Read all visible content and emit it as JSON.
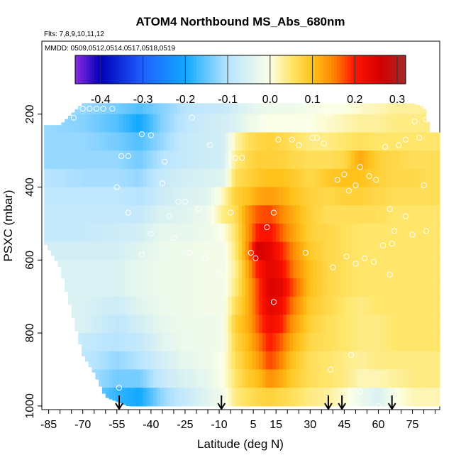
{
  "chart_data": {
    "type": "heatmap",
    "title": "ATOM4 Northbound MS_Abs_680nm",
    "flights_note": "Flts: 7,8,9,10,11,12",
    "dates_note": "MMDD: 0509,0512,0514,0517,0518,0519",
    "xlabel": "Latitude (deg N)",
    "ylabel": "PSXC (mbar)",
    "xlim": [
      -88,
      87
    ],
    "ylim": [
      1010,
      0
    ],
    "x_ticks": [
      "-85",
      "-70",
      "-55",
      "-40",
      "-25",
      "-10",
      "5",
      "15",
      "30",
      "45",
      "60",
      "75"
    ],
    "x_tick_values": [
      -85,
      -70,
      -55,
      -40,
      -25,
      -10,
      5,
      15,
      30,
      45,
      60,
      75
    ],
    "y_ticks": [
      "200",
      "400",
      "600",
      "800",
      "1000"
    ],
    "y_tick_values": [
      200,
      400,
      600,
      800,
      1000
    ],
    "colorbar": {
      "range": [
        -0.46,
        0.32
      ],
      "tick_labels": [
        "-0.4",
        "-0.3",
        "-0.2",
        "-0.1",
        "0.0",
        "0.1",
        "0.2",
        "0.3"
      ],
      "tick_values": [
        -0.4,
        -0.3,
        -0.2,
        -0.1,
        0.0,
        0.1,
        0.2,
        0.3
      ],
      "stops": [
        {
          "v": -0.46,
          "c": "#8a2be2"
        },
        {
          "v": -0.4,
          "c": "#0000b8"
        },
        {
          "v": -0.3,
          "c": "#2060ff"
        },
        {
          "v": -0.2,
          "c": "#10a8ff"
        },
        {
          "v": -0.1,
          "c": "#b8e4ff"
        },
        {
          "v": 0.0,
          "c": "#fbffe6"
        },
        {
          "v": 0.05,
          "c": "#ffe66a"
        },
        {
          "v": 0.1,
          "c": "#ffc21a"
        },
        {
          "v": 0.15,
          "c": "#ff8400"
        },
        {
          "v": 0.2,
          "c": "#ff1500"
        },
        {
          "v": 0.26,
          "c": "#d40000"
        },
        {
          "v": 0.32,
          "c": "#a52a2a"
        }
      ]
    },
    "pressure_levels": [
      175,
      225,
      275,
      325,
      375,
      425,
      475,
      525,
      575,
      625,
      675,
      725,
      775,
      825,
      875,
      925,
      975
    ],
    "profile_anchors": [
      {
        "lat": -85,
        "vals": [
          -0.12,
          -0.12,
          -0.12,
          -0.12,
          -0.1,
          -0.09,
          -0.08,
          -0.08,
          -0.06,
          -0.05,
          -0.05,
          -0.04,
          -0.04,
          -0.04,
          -0.06,
          -0.08,
          -0.1
        ]
      },
      {
        "lat": -70,
        "vals": [
          -0.12,
          -0.13,
          -0.12,
          -0.12,
          -0.11,
          -0.09,
          -0.08,
          -0.08,
          -0.06,
          -0.05,
          -0.05,
          -0.05,
          -0.05,
          -0.08,
          -0.09,
          -0.1,
          -0.12
        ]
      },
      {
        "lat": -55,
        "vals": [
          -0.14,
          -0.16,
          -0.14,
          -0.12,
          -0.11,
          -0.09,
          -0.08,
          -0.07,
          -0.06,
          -0.05,
          -0.05,
          -0.07,
          -0.09,
          -0.1,
          -0.12,
          -0.14,
          -0.18
        ]
      },
      {
        "lat": -45,
        "vals": [
          -0.16,
          -0.2,
          -0.16,
          -0.14,
          -0.12,
          -0.1,
          -0.08,
          -0.06,
          -0.04,
          -0.03,
          -0.03,
          -0.04,
          -0.06,
          -0.08,
          -0.1,
          -0.14,
          -0.2
        ]
      },
      {
        "lat": -35,
        "vals": [
          -0.13,
          -0.13,
          -0.12,
          -0.1,
          -0.08,
          -0.07,
          -0.05,
          -0.03,
          -0.02,
          -0.02,
          -0.02,
          -0.02,
          -0.03,
          -0.04,
          -0.06,
          -0.08,
          -0.12
        ]
      },
      {
        "lat": -25,
        "vals": [
          -0.1,
          -0.09,
          -0.08,
          -0.08,
          -0.06,
          -0.05,
          -0.04,
          -0.03,
          -0.02,
          -0.02,
          -0.02,
          -0.02,
          -0.02,
          -0.02,
          -0.03,
          -0.05,
          -0.08
        ]
      },
      {
        "lat": -15,
        "vals": [
          -0.08,
          -0.07,
          -0.07,
          -0.07,
          -0.05,
          -0.04,
          -0.02,
          -0.02,
          -0.01,
          -0.01,
          -0.01,
          -0.01,
          -0.02,
          -0.02,
          -0.02,
          -0.03,
          -0.04
        ]
      },
      {
        "lat": -8,
        "vals": [
          -0.08,
          -0.06,
          -0.06,
          -0.06,
          -0.04,
          0.02,
          0.04,
          0.0,
          -0.01,
          -0.01,
          -0.01,
          -0.01,
          -0.01,
          -0.01,
          0.0,
          0.0,
          -0.01
        ]
      },
      {
        "lat": -3,
        "vals": [
          -0.06,
          -0.05,
          0.02,
          0.04,
          0.06,
          0.08,
          0.06,
          0.05,
          0.04,
          0.03,
          0.04,
          0.06,
          0.08,
          0.07,
          0.06,
          0.05,
          0.04
        ]
      },
      {
        "lat": 3,
        "vals": [
          -0.04,
          -0.02,
          0.06,
          0.07,
          0.08,
          0.1,
          0.14,
          0.14,
          0.15,
          0.13,
          0.12,
          0.12,
          0.12,
          0.11,
          0.1,
          0.09,
          0.06
        ]
      },
      {
        "lat": 7,
        "vals": [
          -0.03,
          -0.01,
          0.07,
          0.08,
          0.09,
          0.12,
          0.17,
          0.2,
          0.26,
          0.2,
          0.18,
          0.18,
          0.17,
          0.15,
          0.13,
          0.1,
          0.07
        ]
      },
      {
        "lat": 12,
        "vals": [
          -0.02,
          0.0,
          0.08,
          0.08,
          0.1,
          0.13,
          0.18,
          0.21,
          0.24,
          0.24,
          0.25,
          0.24,
          0.22,
          0.2,
          0.18,
          0.14,
          0.08
        ]
      },
      {
        "lat": 17,
        "vals": [
          -0.02,
          0.0,
          0.07,
          0.08,
          0.1,
          0.12,
          0.15,
          0.17,
          0.2,
          0.22,
          0.24,
          0.22,
          0.2,
          0.17,
          0.15,
          0.12,
          0.07
        ]
      },
      {
        "lat": 22,
        "vals": [
          -0.02,
          0.0,
          0.06,
          0.07,
          0.09,
          0.1,
          0.12,
          0.13,
          0.15,
          0.16,
          0.18,
          0.16,
          0.14,
          0.12,
          0.1,
          0.09,
          0.06
        ]
      },
      {
        "lat": 30,
        "vals": [
          -0.01,
          0.0,
          0.04,
          0.06,
          0.07,
          0.08,
          0.08,
          0.08,
          0.09,
          0.1,
          0.1,
          0.09,
          0.08,
          0.07,
          0.06,
          0.06,
          0.04
        ]
      },
      {
        "lat": 38,
        "vals": [
          0.0,
          0.01,
          0.04,
          0.06,
          0.09,
          0.07,
          0.06,
          0.07,
          0.07,
          0.07,
          0.07,
          0.07,
          0.06,
          0.06,
          0.05,
          0.05,
          0.03
        ]
      },
      {
        "lat": 45,
        "vals": [
          0.0,
          0.02,
          0.05,
          0.07,
          0.1,
          0.08,
          0.06,
          0.06,
          0.06,
          0.06,
          0.06,
          0.05,
          0.05,
          0.05,
          0.04,
          0.04,
          0.01
        ]
      },
      {
        "lat": 52,
        "vals": [
          0.01,
          0.03,
          0.06,
          0.12,
          0.1,
          0.08,
          0.06,
          0.05,
          0.05,
          0.05,
          0.05,
          0.04,
          0.04,
          0.04,
          0.03,
          0.02,
          -0.02
        ]
      },
      {
        "lat": 60,
        "vals": [
          0.02,
          0.03,
          0.05,
          0.08,
          0.08,
          0.07,
          0.06,
          0.05,
          0.05,
          0.05,
          0.05,
          0.05,
          0.04,
          0.04,
          0.04,
          0.02,
          -0.05
        ]
      },
      {
        "lat": 68,
        "vals": [
          0.03,
          0.04,
          0.05,
          0.07,
          0.07,
          0.06,
          0.05,
          0.05,
          0.05,
          0.05,
          0.05,
          0.05,
          0.05,
          0.05,
          0.04,
          0.03,
          0.0
        ]
      },
      {
        "lat": 76,
        "vals": [
          0.03,
          0.04,
          0.05,
          0.06,
          0.07,
          0.06,
          0.05,
          0.05,
          0.05,
          0.05,
          0.05,
          0.05,
          0.05,
          0.05,
          0.04,
          0.04,
          0.02
        ]
      },
      {
        "lat": 84,
        "vals": [
          0.03,
          0.04,
          0.05,
          0.06,
          0.06,
          0.06,
          0.05,
          0.05,
          0.05,
          0.05,
          0.05,
          0.05,
          0.05,
          0.05,
          0.04,
          0.04,
          0.02
        ]
      }
    ],
    "column_bounds": {
      "lats": [
        -90,
        -80,
        -70,
        -65,
        -60,
        -50,
        -40,
        -30,
        -20,
        -10,
        0,
        10,
        20,
        40,
        60,
        75,
        80,
        83,
        90
      ],
      "top": [
        230,
        230,
        170,
        170,
        170,
        170,
        170,
        170,
        170,
        170,
        170,
        170,
        170,
        170,
        170,
        170,
        180,
        250,
        250
      ],
      "bottom": [
        520,
        620,
        860,
        910,
        975,
        1000,
        1000,
        1000,
        1000,
        1000,
        1000,
        1000,
        1000,
        1000,
        1000,
        1000,
        1000,
        1000,
        1000
      ]
    },
    "sample_points": [
      {
        "lat": -86,
        "p": 215
      },
      {
        "lat": -82,
        "p": 212
      },
      {
        "lat": -74,
        "p": 210
      },
      {
        "lat": -70,
        "p": 185
      },
      {
        "lat": -67,
        "p": 185
      },
      {
        "lat": -64,
        "p": 185
      },
      {
        "lat": -61,
        "p": 185
      },
      {
        "lat": -57,
        "p": 185
      },
      {
        "lat": -44,
        "p": 255
      },
      {
        "lat": -40,
        "p": 258
      },
      {
        "lat": -53,
        "p": 315
      },
      {
        "lat": -50,
        "p": 315
      },
      {
        "lat": -55,
        "p": 400
      },
      {
        "lat": -34,
        "p": 330
      },
      {
        "lat": -22,
        "p": 210
      },
      {
        "lat": -14,
        "p": 285
      },
      {
        "lat": -3,
        "p": 320
      },
      {
        "lat": 0,
        "p": 320
      },
      {
        "lat": -28,
        "p": 440
      },
      {
        "lat": -25,
        "p": 440
      },
      {
        "lat": -32,
        "p": 480
      },
      {
        "lat": -19,
        "p": 460
      },
      {
        "lat": -50,
        "p": 470
      },
      {
        "lat": -40,
        "p": 528
      },
      {
        "lat": -30,
        "p": 540
      },
      {
        "lat": -44,
        "p": 585
      },
      {
        "lat": -16,
        "p": 595
      },
      {
        "lat": -10,
        "p": 640
      },
      {
        "lat": 4,
        "p": 580
      },
      {
        "lat": 6,
        "p": 595
      },
      {
        "lat": 11,
        "p": 510
      },
      {
        "lat": 14,
        "p": 470
      },
      {
        "lat": 14,
        "p": 715
      },
      {
        "lat": 16,
        "p": 270
      },
      {
        "lat": 22,
        "p": 270
      },
      {
        "lat": 25,
        "p": 285
      },
      {
        "lat": 31,
        "p": 265
      },
      {
        "lat": 33,
        "p": 265
      },
      {
        "lat": 36,
        "p": 280
      },
      {
        "lat": 38,
        "p": 200
      },
      {
        "lat": 42,
        "p": 380
      },
      {
        "lat": 45,
        "p": 365
      },
      {
        "lat": 47,
        "p": 410
      },
      {
        "lat": 50,
        "p": 395
      },
      {
        "lat": 52,
        "p": 345
      },
      {
        "lat": 56,
        "p": 370
      },
      {
        "lat": 59,
        "p": 380
      },
      {
        "lat": 63,
        "p": 290
      },
      {
        "lat": 69,
        "p": 285
      },
      {
        "lat": 72,
        "p": 270
      },
      {
        "lat": 78,
        "p": 265
      },
      {
        "lat": 80,
        "p": 395
      },
      {
        "lat": 81,
        "p": 215
      },
      {
        "lat": 76,
        "p": 220
      },
      {
        "lat": 65,
        "p": 460
      },
      {
        "lat": 67,
        "p": 520
      },
      {
        "lat": 75,
        "p": 530
      },
      {
        "lat": 81,
        "p": 520
      },
      {
        "lat": 72,
        "p": 480
      },
      {
        "lat": 62,
        "p": 560
      },
      {
        "lat": 66,
        "p": 555
      },
      {
        "lat": 40,
        "p": 620
      },
      {
        "lat": 46,
        "p": 590
      },
      {
        "lat": 50,
        "p": 610
      },
      {
        "lat": 54,
        "p": 595
      },
      {
        "lat": 65,
        "p": 640
      },
      {
        "lat": 58,
        "p": 605
      },
      {
        "lat": 39,
        "p": 900
      },
      {
        "lat": 48,
        "p": 860
      },
      {
        "lat": 52,
        "p": 960
      },
      {
        "lat": 60,
        "p": 1000
      },
      {
        "lat": -23,
        "p": 580
      },
      {
        "lat": -35,
        "p": 390
      },
      {
        "lat": -54,
        "p": 950
      },
      {
        "lat": -5,
        "p": 470
      },
      {
        "lat": 28,
        "p": 580
      }
    ],
    "arrow_latitudes": [
      -54,
      -9,
      38,
      44,
      66
    ]
  }
}
